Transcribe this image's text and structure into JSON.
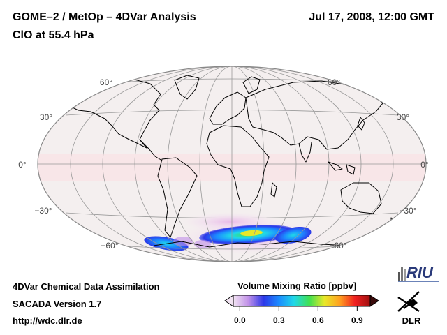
{
  "header": {
    "title": "GOME–2 / MetOp – 4DVar Analysis",
    "subtitle": "ClO at 55.4 hPa",
    "datetime": "Jul 17, 2008, 12:00 GMT"
  },
  "map": {
    "projection": "Hammer-Aitoff (global)",
    "lat_labels_left": [
      "60°",
      "30°",
      "0°",
      "−30°",
      "−60°"
    ],
    "lat_labels_right": [
      "60°",
      "30°",
      "0°",
      "−30°",
      "−60°"
    ],
    "ocean_color": "#f4efef",
    "tropical_tint": "#f8e6e8",
    "coast_color": "#000000"
  },
  "colorbar": {
    "title": "Volume Mixing Ratio [ppbv]",
    "ticks": [
      "0.0",
      "0.3",
      "0.6",
      "0.9"
    ],
    "tick_values": [
      0.0,
      0.3,
      0.6,
      0.9
    ],
    "range": [
      -0.05,
      1.0
    ],
    "colors": [
      "#f2e4f2",
      "#c090e8",
      "#2c38e8",
      "#1c8cff",
      "#20d8e8",
      "#40e050",
      "#e8e828",
      "#ffa020",
      "#f02020",
      "#a01010"
    ]
  },
  "footer": {
    "line1": "4DVar Chemical Data Assimilation",
    "line2": "SACADA Version 1.7",
    "line3": "http://wdc.dlr.de"
  },
  "logos": {
    "riu": "RIU",
    "dlr": "DLR"
  }
}
